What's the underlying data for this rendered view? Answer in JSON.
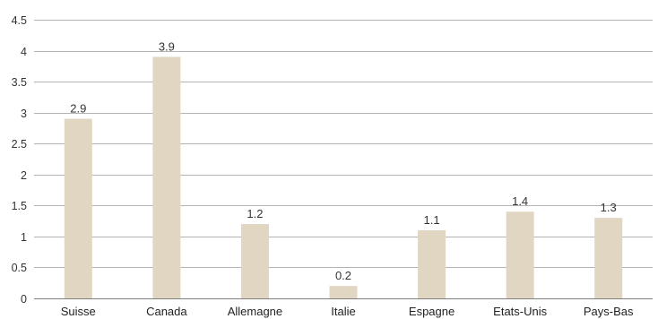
{
  "chart_data": {
    "type": "bar",
    "title": "",
    "xlabel": "",
    "ylabel": "",
    "categories": [
      "Suisse",
      "Canada",
      "Allemagne",
      "Italie",
      "Espagne",
      "Etats-Unis",
      "Pays-Bas"
    ],
    "values": [
      2.9,
      3.9,
      1.2,
      0.2,
      1.1,
      1.4,
      1.3
    ],
    "data_labels": [
      "2.9",
      "3.9",
      "1.2",
      "0.2",
      "1.1",
      "1.4",
      "1.3"
    ],
    "ylim": [
      0,
      4.5
    ],
    "y_ticks": [
      0,
      0.5,
      1,
      1.5,
      2,
      2.5,
      3,
      3.5,
      4,
      4.5
    ],
    "y_tick_labels": [
      "0",
      "0.5",
      "1",
      "1.5",
      "2",
      "2.5",
      "3",
      "3.5",
      "4",
      "4.5"
    ],
    "grid": true,
    "legend": "none",
    "bar_color": "#e0d6c2",
    "grid_color": "#9a9a9a",
    "text_color": "#333333"
  }
}
